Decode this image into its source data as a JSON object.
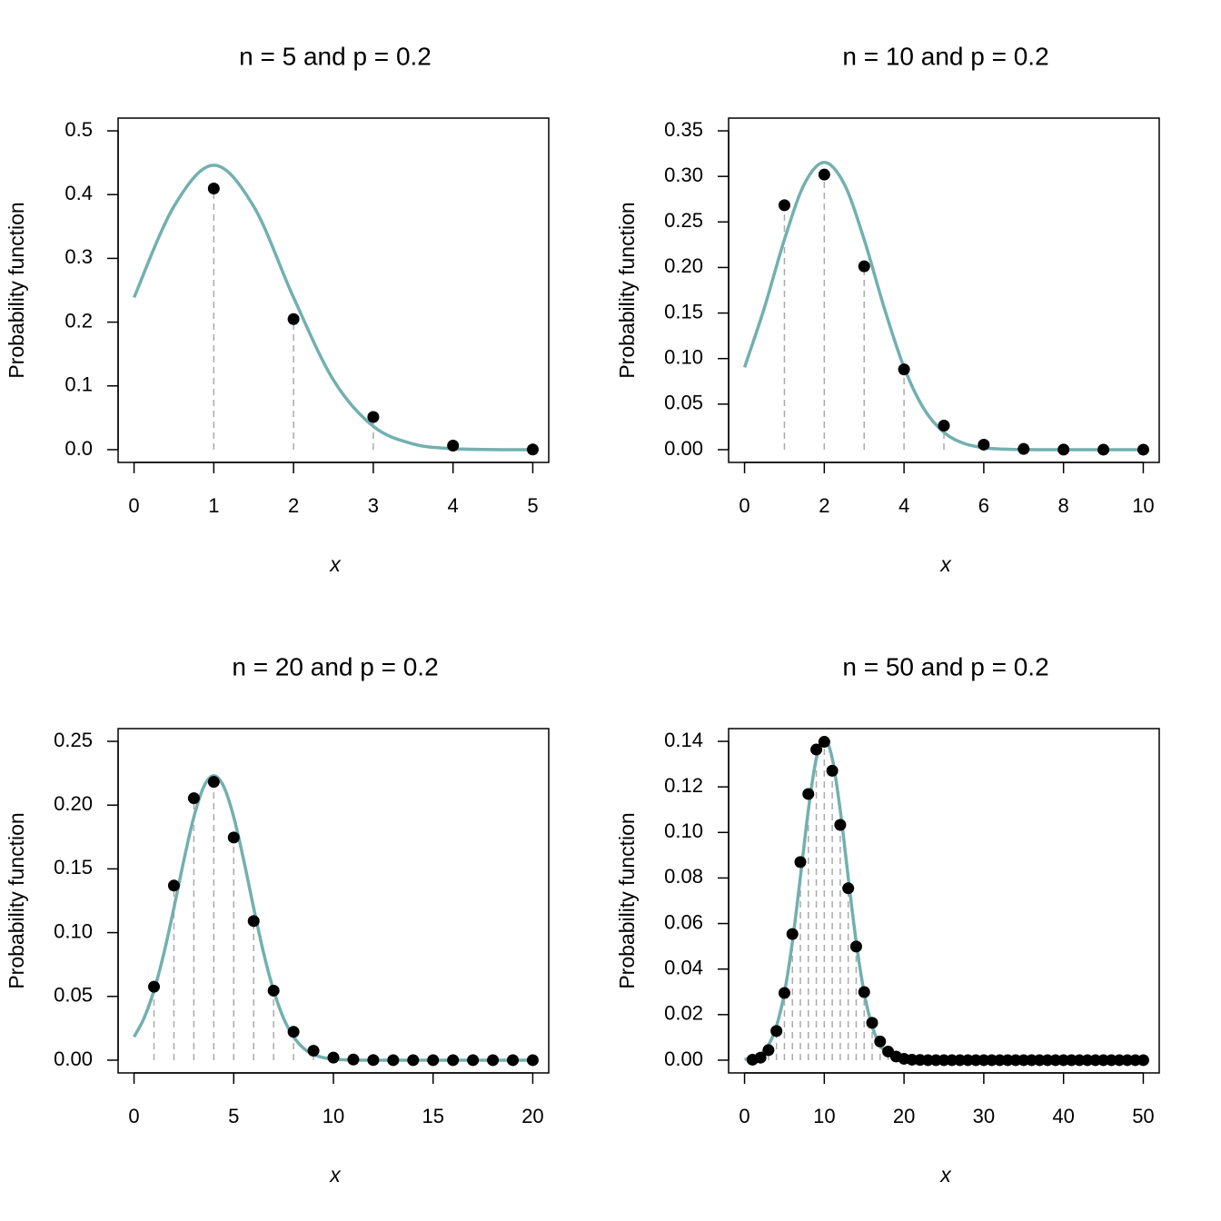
{
  "chart_data": [
    {
      "type": "scatter",
      "title": "n = 5 and p = 0.2",
      "x_label": "x",
      "y_label": "Probability function",
      "xlim": [
        -0.2,
        5.2
      ],
      "xticks": [
        0,
        1,
        2,
        3,
        4,
        5
      ],
      "ylim": [
        -0.02,
        0.52
      ],
      "yticks": [
        {
          "value": 0,
          "label": "0.0"
        },
        0.1,
        0.2,
        0.3,
        0.4,
        0.5
      ],
      "series": [
        {
          "type": "line",
          "color": "#72b0ae",
          "x": [
            0,
            0.5,
            1,
            1.5,
            2,
            2.5,
            3,
            3.5,
            4,
            4.5,
            5
          ],
          "values": [
            0.2387,
            0.3815,
            0.446,
            0.3815,
            0.2387,
            0.1093,
            0.0366,
            0.009,
            0.0016,
            0.0002,
            0
          ]
        },
        {
          "type": "stem",
          "color": "#000000",
          "stem_color": "#aaaaaa",
          "x": [
            1,
            2,
            3,
            4,
            5
          ],
          "values": [
            0.4096,
            0.2048,
            0.0512,
            0.0064,
            0.0003
          ]
        }
      ]
    },
    {
      "type": "scatter",
      "title": "n = 10 and p = 0.2",
      "x_label": "x",
      "y_label": "Probability function",
      "xlim": [
        -0.4,
        10.4
      ],
      "xticks": [
        0,
        2,
        4,
        6,
        8,
        10
      ],
      "ylim": [
        -0.014,
        0.364
      ],
      "yticks": [
        {
          "value": 0,
          "label": "0.00"
        },
        0.05,
        {
          "value": 0.1,
          "label": "0.10"
        },
        0.15,
        {
          "value": 0.2,
          "label": "0.20"
        },
        0.25,
        {
          "value": 0.3,
          "label": "0.30"
        },
        0.35
      ],
      "series": [
        {
          "type": "line",
          "color": "#72b0ae",
          "x": [
            0,
            0.5,
            1,
            1.5,
            2,
            2.5,
            3,
            3.5,
            4,
            4.5,
            5,
            5.5,
            6,
            6.5,
            7,
            7.5,
            8,
            8.5,
            9,
            9.5,
            10
          ],
          "values": [
            0.0904,
            0.1561,
            0.2307,
            0.2917,
            0.3154,
            0.2917,
            0.2307,
            0.1561,
            0.0904,
            0.0447,
            0.019,
            0.0069,
            0.0021,
            0.0006,
            0.0001,
            0,
            0,
            0,
            0,
            0,
            0
          ]
        },
        {
          "type": "stem",
          "color": "#000000",
          "stem_color": "#aaaaaa",
          "x": [
            1,
            2,
            3,
            4,
            5,
            6,
            7,
            8,
            9,
            10
          ],
          "values": [
            0.2684,
            0.302,
            0.2013,
            0.0881,
            0.0264,
            0.0055,
            0.0008,
            0.0001,
            0,
            0
          ]
        }
      ]
    },
    {
      "type": "scatter",
      "title": "n = 20 and p = 0.2",
      "x_label": "x",
      "y_label": "Probability function",
      "xlim": [
        -0.8,
        20.8
      ],
      "xticks": [
        0,
        5,
        10,
        15,
        20
      ],
      "ylim": [
        -0.01,
        0.26
      ],
      "yticks": [
        {
          "value": 0,
          "label": "0.00"
        },
        0.05,
        {
          "value": 0.1,
          "label": "0.10"
        },
        0.15,
        {
          "value": 0.2,
          "label": "0.20"
        },
        0.25
      ],
      "series": [
        {
          "type": "line",
          "color": "#72b0ae",
          "x": [
            0,
            0.5,
            1,
            1.5,
            2,
            2.5,
            3,
            3.5,
            4,
            4.5,
            5,
            5.5,
            6,
            6.5,
            7,
            7.5,
            8,
            8.5,
            9,
            9.5,
            10,
            10.5,
            11,
            12,
            14,
            16,
            18,
            20
          ],
          "values": [
            0.0183,
            0.0329,
            0.0547,
            0.084,
            0.1194,
            0.1569,
            0.1907,
            0.2145,
            0.223,
            0.2145,
            0.1907,
            0.1569,
            0.1194,
            0.084,
            0.0547,
            0.0329,
            0.0183,
            0.0094,
            0.0045,
            0.002,
            0.0008,
            0.0003,
            0.0001,
            0,
            0,
            0,
            0,
            0
          ]
        },
        {
          "type": "stem",
          "color": "#000000",
          "stem_color": "#aaaaaa",
          "x": [
            1,
            2,
            3,
            4,
            5,
            6,
            7,
            8,
            9,
            10,
            11,
            12,
            13,
            14,
            15,
            16,
            17,
            18,
            19,
            20
          ],
          "values": [
            0.0576,
            0.1369,
            0.2054,
            0.2182,
            0.1746,
            0.1091,
            0.0545,
            0.0222,
            0.0074,
            0.002,
            0.0005,
            0.0001,
            0,
            0,
            0,
            0,
            0,
            0,
            0,
            0
          ]
        }
      ]
    },
    {
      "type": "scatter",
      "title": "n = 50 and p = 0.2",
      "x_label": "x",
      "y_label": "Probability function",
      "xlim": [
        -2,
        52
      ],
      "xticks": [
        0,
        10,
        20,
        30,
        40,
        50
      ],
      "ylim": [
        -0.0056,
        0.1456
      ],
      "yticks": [
        {
          "value": 0,
          "label": "0.00"
        },
        0.02,
        0.04,
        0.06,
        0.08,
        {
          "value": 0.1,
          "label": "0.10"
        },
        0.12,
        0.14
      ],
      "series": [
        {
          "type": "line",
          "color": "#72b0ae",
          "x": [
            0,
            1,
            2,
            3,
            4,
            5,
            6,
            7,
            8,
            9,
            10,
            11,
            12,
            13,
            14,
            15,
            16,
            17,
            18,
            19,
            20,
            21,
            22,
            25,
            30,
            35,
            40,
            45,
            50
          ],
          "values": [
            0.0003,
            0.0009,
            0.0026,
            0.0066,
            0.0149,
            0.0296,
            0.0519,
            0.0803,
            0.1098,
            0.1325,
            0.141,
            0.1325,
            0.1098,
            0.0803,
            0.0519,
            0.0296,
            0.0149,
            0.0066,
            0.0026,
            0.0009,
            0.0003,
            0.0001,
            0,
            0,
            0,
            0,
            0,
            0,
            0
          ]
        },
        {
          "type": "stem",
          "color": "#000000",
          "stem_color": "#aaaaaa",
          "x": [
            1,
            2,
            3,
            4,
            5,
            6,
            7,
            8,
            9,
            10,
            11,
            12,
            13,
            14,
            15,
            16,
            17,
            18,
            19,
            20,
            21,
            22,
            23,
            24,
            25,
            26,
            27,
            28,
            29,
            30,
            31,
            32,
            33,
            34,
            35,
            36,
            37,
            38,
            39,
            40,
            41,
            42,
            43,
            44,
            45,
            46,
            47,
            48,
            49,
            50
          ],
          "values": [
            0.0002,
            0.0011,
            0.0044,
            0.0128,
            0.0295,
            0.0554,
            0.087,
            0.1169,
            0.1364,
            0.1398,
            0.1271,
            0.1033,
            0.0755,
            0.0499,
            0.0299,
            0.0164,
            0.0082,
            0.0038,
            0.0016,
            0.0006,
            0.0002,
            0.0001,
            0,
            0,
            0,
            0,
            0,
            0,
            0,
            0,
            0,
            0,
            0,
            0,
            0,
            0,
            0,
            0,
            0,
            0,
            0,
            0,
            0,
            0,
            0,
            0,
            0,
            0,
            0,
            0
          ]
        }
      ]
    }
  ]
}
